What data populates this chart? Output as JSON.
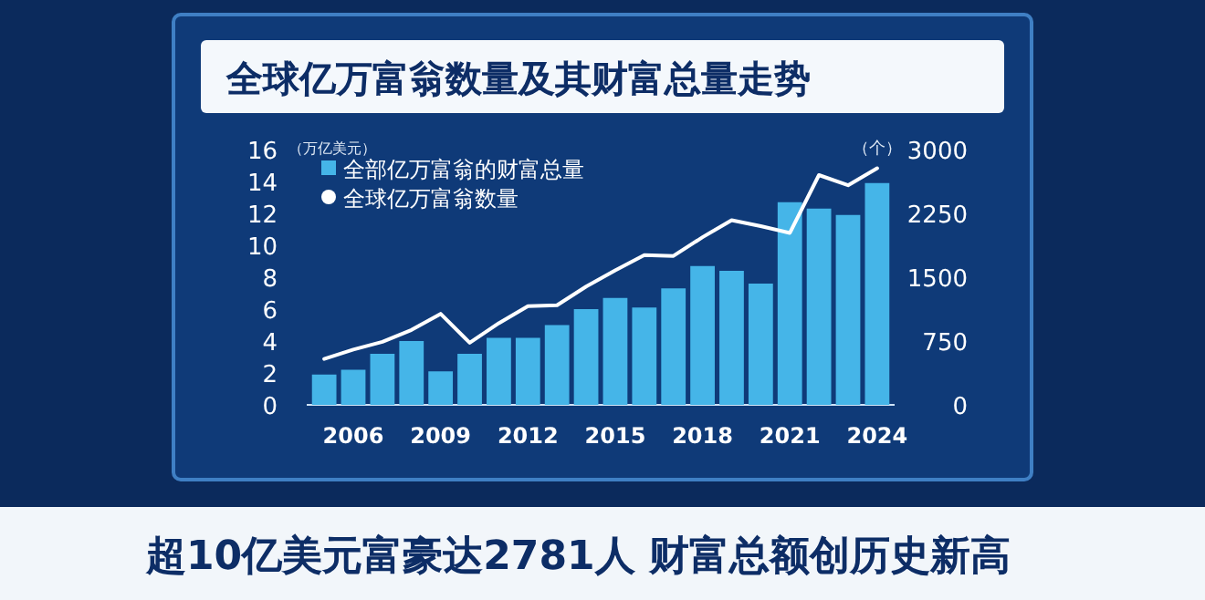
{
  "chart_data": {
    "type": "bar",
    "title": "全球亿万富翁数量及其财富总量走势",
    "ylabel": "（万亿美元）",
    "y2label": "（个）",
    "x": [
      2005,
      2006,
      2007,
      2008,
      2009,
      2010,
      2011,
      2012,
      2013,
      2014,
      2015,
      2016,
      2017,
      2018,
      2019,
      2020,
      2021,
      2022,
      2023,
      2024
    ],
    "series": [
      {
        "name": "全部亿万富翁的财富总量",
        "color": "#45b5e8",
        "values": [
          1.9,
          2.2,
          3.2,
          4.0,
          2.1,
          3.2,
          4.2,
          4.2,
          5.0,
          6.0,
          6.7,
          6.1,
          7.3,
          8.7,
          8.4,
          7.6,
          12.7,
          12.3,
          11.9,
          13.9
        ]
      },
      {
        "name": "全球亿万富翁数量",
        "type": "line",
        "axis": "y2",
        "color": "#ffffff",
        "values": [
          540,
          650,
          740,
          880,
          1070,
          730,
          960,
          1160,
          1170,
          1390,
          1580,
          1760,
          1750,
          1970,
          2170,
          2100,
          2020,
          2700,
          2580,
          2780
        ]
      }
    ],
    "xlim": [
      2004.4,
      2024.6
    ],
    "xticks": [
      2006,
      2009,
      2012,
      2015,
      2018,
      2021,
      2024
    ],
    "ylim": [
      0,
      16
    ],
    "yticks": [
      0,
      2,
      4,
      6,
      8,
      10,
      12,
      14,
      16
    ],
    "y2lim": [
      0,
      3000
    ],
    "y2ticks": [
      0,
      750,
      1500,
      2250,
      3000
    ],
    "legend": "top left",
    "annotations": [
      "超10亿美元富豪达2781人 财富总额创历史新高"
    ]
  }
}
